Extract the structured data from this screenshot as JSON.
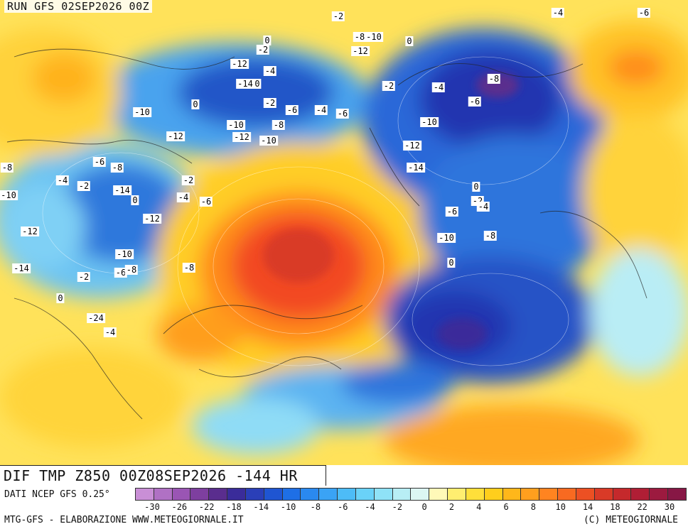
{
  "header": {
    "run_label": "RUN GFS 02SEP2026 00Z"
  },
  "title": {
    "text": "DIF TMP Z850 00Z08SEP2026 -144 HR"
  },
  "footer": {
    "source": "DATI NCEP GFS 0.25°",
    "credit_left": "MTG-GFS - ELABORAZIONE WWW.METEOGIORNALE.IT",
    "credit_right": "(C) METEOGIORNALE"
  },
  "colorbar": {
    "colors": [
      "#c98fd6",
      "#b071c4",
      "#9a55b4",
      "#7e3f9f",
      "#5a2d8e",
      "#3a2c9a",
      "#2a3fb8",
      "#1f55d2",
      "#1e6fe6",
      "#2a89f0",
      "#3aa3f5",
      "#4dbcf7",
      "#6ad2f8",
      "#8fe2f7",
      "#b8eef5",
      "#dcf6f3",
      "#fff9b8",
      "#ffee70",
      "#ffdf3a",
      "#ffce1c",
      "#ffb71a",
      "#ff9f1e",
      "#ff8420",
      "#f86a21",
      "#ec5023",
      "#d93a27",
      "#c5292c",
      "#b01e35",
      "#9c1a3f",
      "#871745"
    ],
    "ticks": [
      "-30",
      "-26",
      "-22",
      "-18",
      "-14",
      "-10",
      "-8",
      "-6",
      "-4",
      "-2",
      "0",
      "2",
      "4",
      "6",
      "8",
      "10",
      "14",
      "18",
      "22",
      "30"
    ]
  },
  "map_labels": [
    "-2",
    "-4",
    "-6",
    "-8",
    "-10",
    "-12",
    "-14",
    "0",
    "-24",
    "-4",
    "-2",
    "-6",
    "-8",
    "-10",
    "-12",
    "-14",
    "0",
    "-2",
    "-4",
    "-6",
    "-8",
    "-10",
    "-12",
    "0",
    "-2",
    "-4",
    "-6",
    "-8",
    "-10",
    "-12",
    "-14",
    "0",
    "-2",
    "-4",
    "-6",
    "-8",
    "-10",
    "-12",
    "0",
    "-2",
    "-4",
    "-6",
    "-8",
    "-10",
    "-12",
    "0",
    "-2",
    "-4",
    "-6",
    "-8",
    "-10",
    "-12",
    "-14",
    "0",
    "-2",
    "-4",
    "-6",
    "-8",
    "-10",
    "0"
  ]
}
